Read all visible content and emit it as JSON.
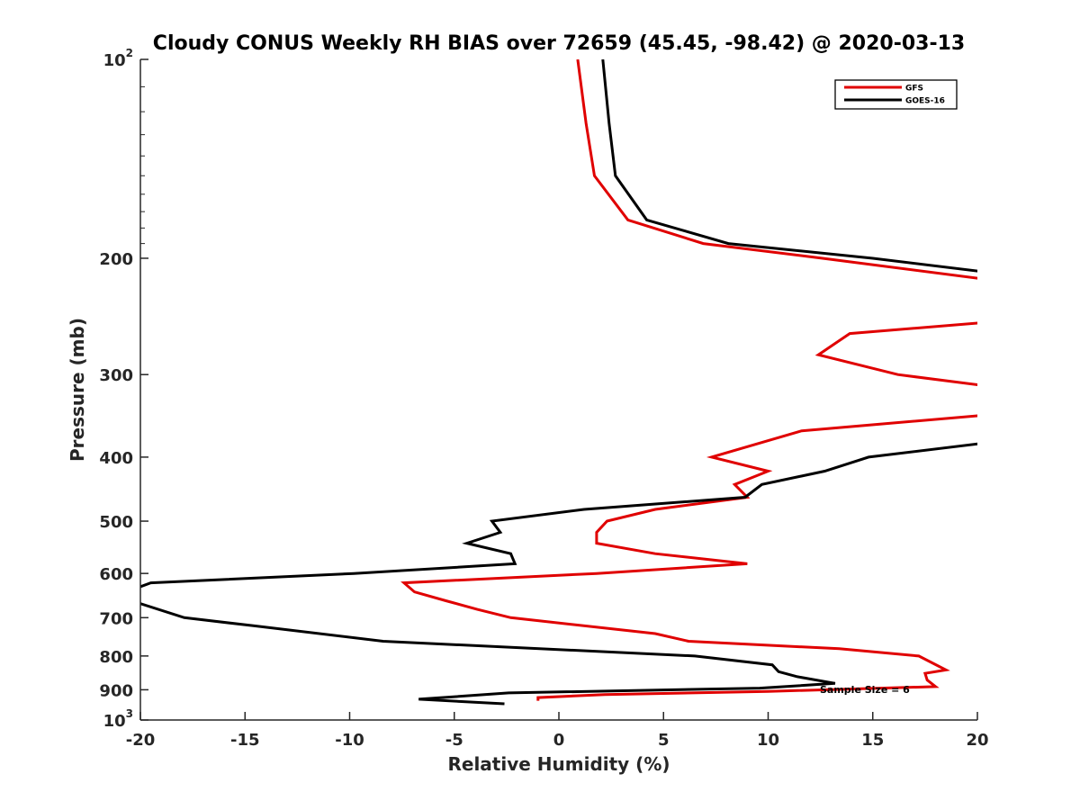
{
  "chart_data": {
    "type": "line",
    "title": "Cloudy CONUS Weekly RH BIAS over 72659 (45.45, -98.42) @ 2020-03-13",
    "xlabel": "Relative Humidity (%)",
    "ylabel": "Pressure (mb)",
    "xlim": [
      -20,
      20
    ],
    "ylim": [
      100,
      1000
    ],
    "y_scale": "log",
    "y_reversed": true,
    "x_ticks": [
      -20,
      -15,
      -10,
      -5,
      0,
      5,
      10,
      15,
      20
    ],
    "x_tick_labels": [
      "-20",
      "-15",
      "-10",
      "-5",
      "0",
      "5",
      "10",
      "15",
      "20"
    ],
    "y_ticks": [
      100,
      200,
      300,
      400,
      500,
      600,
      700,
      800,
      900,
      1000
    ],
    "y_tick_labels": [
      {
        "base": "10",
        "sup": "2"
      },
      {
        "base": "200"
      },
      {
        "base": "300"
      },
      {
        "base": "400"
      },
      {
        "base": "500"
      },
      {
        "base": "600"
      },
      {
        "base": "700"
      },
      {
        "base": "800"
      },
      {
        "base": "900"
      },
      {
        "base": "10",
        "sup": "3"
      }
    ],
    "legend_position": "top-right",
    "annotation": "Sample Size = 6",
    "series": [
      {
        "name": "GFS",
        "color": "#e00000",
        "points": [
          [
            0.9,
            100
          ],
          [
            1.3,
            125
          ],
          [
            1.7,
            150
          ],
          [
            3.3,
            175
          ],
          [
            6.9,
            190
          ],
          [
            12.6,
            200
          ],
          [
            20.3,
            215
          ],
          [
            null,
            null
          ],
          [
            20.5,
            250
          ],
          [
            13.9,
            260
          ],
          [
            12.4,
            280
          ],
          [
            16.2,
            300
          ],
          [
            20.4,
            312
          ],
          [
            null,
            null
          ],
          [
            20.6,
            345
          ],
          [
            11.6,
            365
          ],
          [
            7.3,
            400
          ],
          [
            10.0,
            420
          ],
          [
            8.4,
            440
          ],
          [
            9.0,
            460
          ],
          [
            4.6,
            480
          ],
          [
            2.3,
            500
          ],
          [
            1.8,
            520
          ],
          [
            1.8,
            540
          ],
          [
            4.6,
            560
          ],
          [
            9.0,
            580
          ],
          [
            1.8,
            600
          ],
          [
            -7.4,
            620
          ],
          [
            -6.9,
            640
          ],
          [
            -5.4,
            660
          ],
          [
            -3.9,
            680
          ],
          [
            -2.3,
            700
          ],
          [
            4.6,
            740
          ],
          [
            6.2,
            760
          ],
          [
            13.4,
            780
          ],
          [
            17.2,
            800
          ],
          [
            18.5,
            840
          ],
          [
            17.5,
            850
          ],
          [
            17.6,
            870
          ],
          [
            18.0,
            890
          ],
          [
            10.0,
            905
          ],
          [
            2.2,
            915
          ],
          [
            -1.0,
            925
          ],
          [
            -1.0,
            935
          ]
        ]
      },
      {
        "name": "GOES-16",
        "color": "#000000",
        "points": [
          [
            2.1,
            100
          ],
          [
            2.4,
            125
          ],
          [
            2.7,
            150
          ],
          [
            4.2,
            175
          ],
          [
            8.1,
            190
          ],
          [
            15.0,
            200
          ],
          [
            20.5,
            210
          ],
          [
            null,
            null
          ],
          [
            20.6,
            380
          ],
          [
            14.8,
            400
          ],
          [
            12.7,
            420
          ],
          [
            9.7,
            440
          ],
          [
            8.9,
            460
          ],
          [
            1.2,
            480
          ],
          [
            -3.2,
            500
          ],
          [
            -2.8,
            520
          ],
          [
            -4.4,
            540
          ],
          [
            -2.3,
            560
          ],
          [
            -2.1,
            580
          ],
          [
            -9.8,
            600
          ],
          [
            -19.5,
            620
          ],
          [
            -20.1,
            630
          ],
          [
            null,
            null
          ],
          [
            -20.1,
            665
          ],
          [
            -17.9,
            700
          ],
          [
            -14.6,
            720
          ],
          [
            -8.4,
            760
          ],
          [
            6.5,
            800
          ],
          [
            10.2,
            825
          ],
          [
            10.5,
            845
          ],
          [
            11.4,
            860
          ],
          [
            13.2,
            880
          ],
          [
            9.6,
            895
          ],
          [
            -2.4,
            910
          ],
          [
            -6.7,
            930
          ],
          [
            -2.6,
            945
          ]
        ]
      }
    ]
  }
}
